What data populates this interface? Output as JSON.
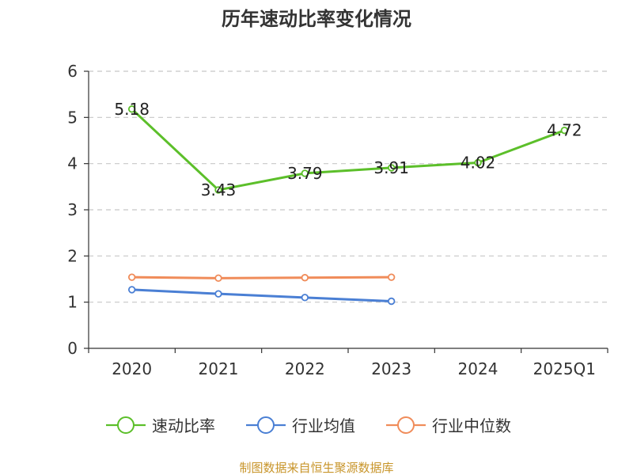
{
  "chart_data": {
    "type": "line",
    "title": "历年速动比率变化情况",
    "categories": [
      "2020",
      "2021",
      "2022",
      "2023",
      "2024",
      "2025Q1"
    ],
    "ylim": [
      0,
      6
    ],
    "yticks": [
      "0",
      "1",
      "2",
      "3",
      "4",
      "5",
      "6"
    ],
    "grid": "horizontal-dashed",
    "legend_position": "bottom",
    "series": [
      {
        "name": "速动比率",
        "color": "#5cbf2a",
        "values": [
          5.18,
          3.43,
          3.79,
          3.91,
          4.02,
          4.72
        ],
        "labels": [
          "5.18",
          "3.43",
          "3.79",
          "3.91",
          "4.02",
          "4.72"
        ]
      },
      {
        "name": "行业均值",
        "color": "#4a7fd4",
        "values": [
          1.27,
          1.18,
          1.1,
          1.02,
          null,
          null
        ]
      },
      {
        "name": "行业中位数",
        "color": "#f08c5a",
        "values": [
          1.54,
          1.52,
          1.53,
          1.54,
          null,
          null
        ]
      }
    ]
  },
  "footer": {
    "source": "制图数据来自恒生聚源数据库"
  }
}
